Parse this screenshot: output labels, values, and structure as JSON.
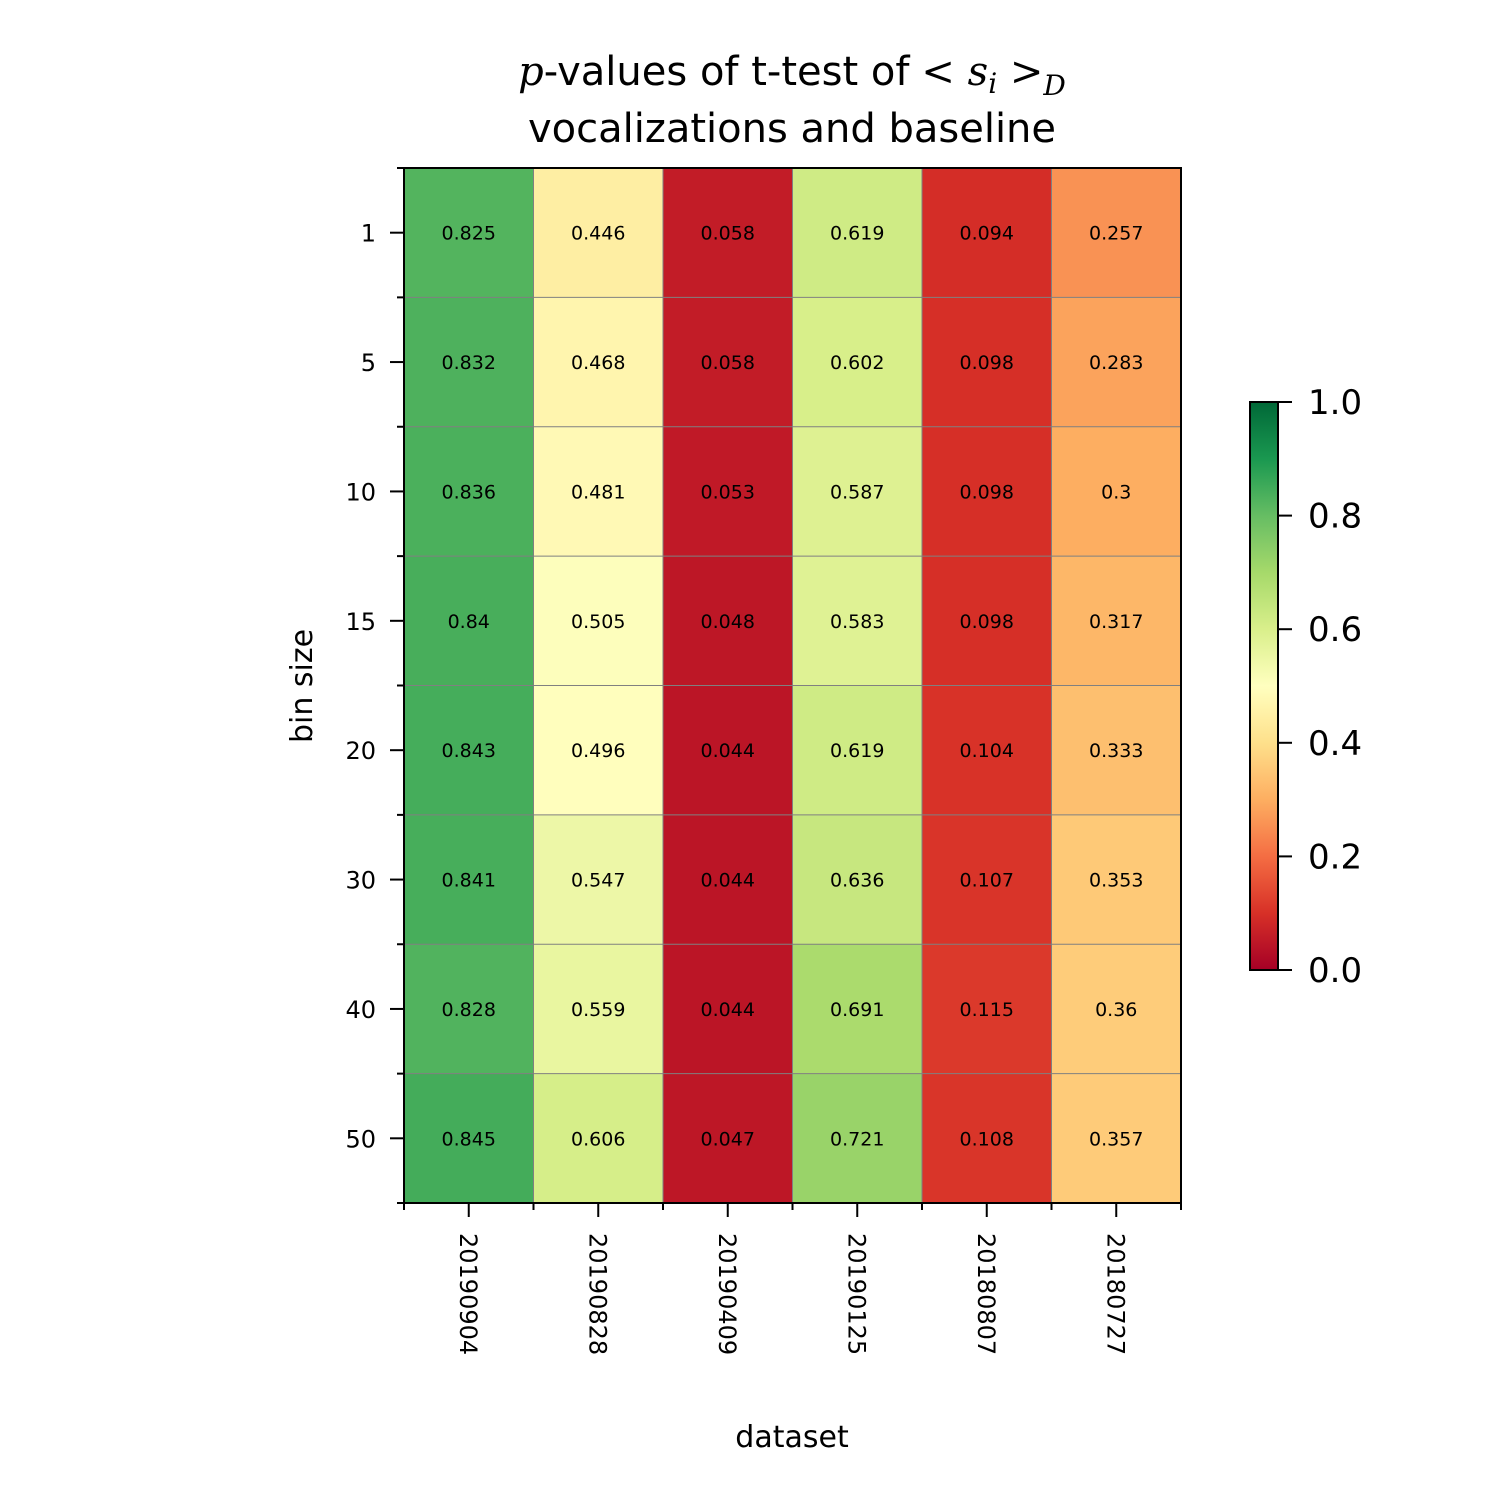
{
  "chart_data": {
    "type": "heatmap",
    "title_line1_prefix": "p",
    "title_line1_text": "-values of t-test of",
    "title_math": "< s_i >_D",
    "title_line2": "vocalizations and baseline",
    "xlabel": "dataset",
    "ylabel": "bin size",
    "x_categories": [
      "20190904",
      "20190828",
      "20190409",
      "20190125",
      "20180807",
      "20180727"
    ],
    "y_categories": [
      "1",
      "5",
      "10",
      "15",
      "20",
      "30",
      "40",
      "50"
    ],
    "values": [
      [
        0.825,
        0.446,
        0.058,
        0.619,
        0.094,
        0.257
      ],
      [
        0.832,
        0.468,
        0.058,
        0.602,
        0.098,
        0.283
      ],
      [
        0.836,
        0.481,
        0.053,
        0.587,
        0.098,
        0.3
      ],
      [
        0.84,
        0.505,
        0.048,
        0.583,
        0.098,
        0.317
      ],
      [
        0.843,
        0.496,
        0.044,
        0.619,
        0.104,
        0.333
      ],
      [
        0.841,
        0.547,
        0.044,
        0.636,
        0.107,
        0.353
      ],
      [
        0.828,
        0.559,
        0.044,
        0.691,
        0.115,
        0.36
      ],
      [
        0.845,
        0.606,
        0.047,
        0.721,
        0.108,
        0.357
      ]
    ],
    "cell_labels": [
      [
        "0.825",
        "0.446",
        "0.058",
        "0.619",
        "0.094",
        "0.257"
      ],
      [
        "0.832",
        "0.468",
        "0.058",
        "0.602",
        "0.098",
        "0.283"
      ],
      [
        "0.836",
        "0.481",
        "0.053",
        "0.587",
        "0.098",
        "0.3"
      ],
      [
        "0.84",
        "0.505",
        "0.048",
        "0.583",
        "0.098",
        "0.317"
      ],
      [
        "0.843",
        "0.496",
        "0.044",
        "0.619",
        "0.104",
        "0.333"
      ],
      [
        "0.841",
        "0.547",
        "0.044",
        "0.636",
        "0.107",
        "0.353"
      ],
      [
        "0.828",
        "0.559",
        "0.044",
        "0.691",
        "0.115",
        "0.36"
      ],
      [
        "0.845",
        "0.606",
        "0.047",
        "0.721",
        "0.108",
        "0.357"
      ]
    ],
    "colormap": "RdYlGn",
    "vmin": 0.0,
    "vmax": 1.0,
    "colorbar_ticks": [
      "0.0",
      "0.2",
      "0.4",
      "0.6",
      "0.8",
      "1.0"
    ],
    "grid": true,
    "grid_color": "#808080"
  }
}
